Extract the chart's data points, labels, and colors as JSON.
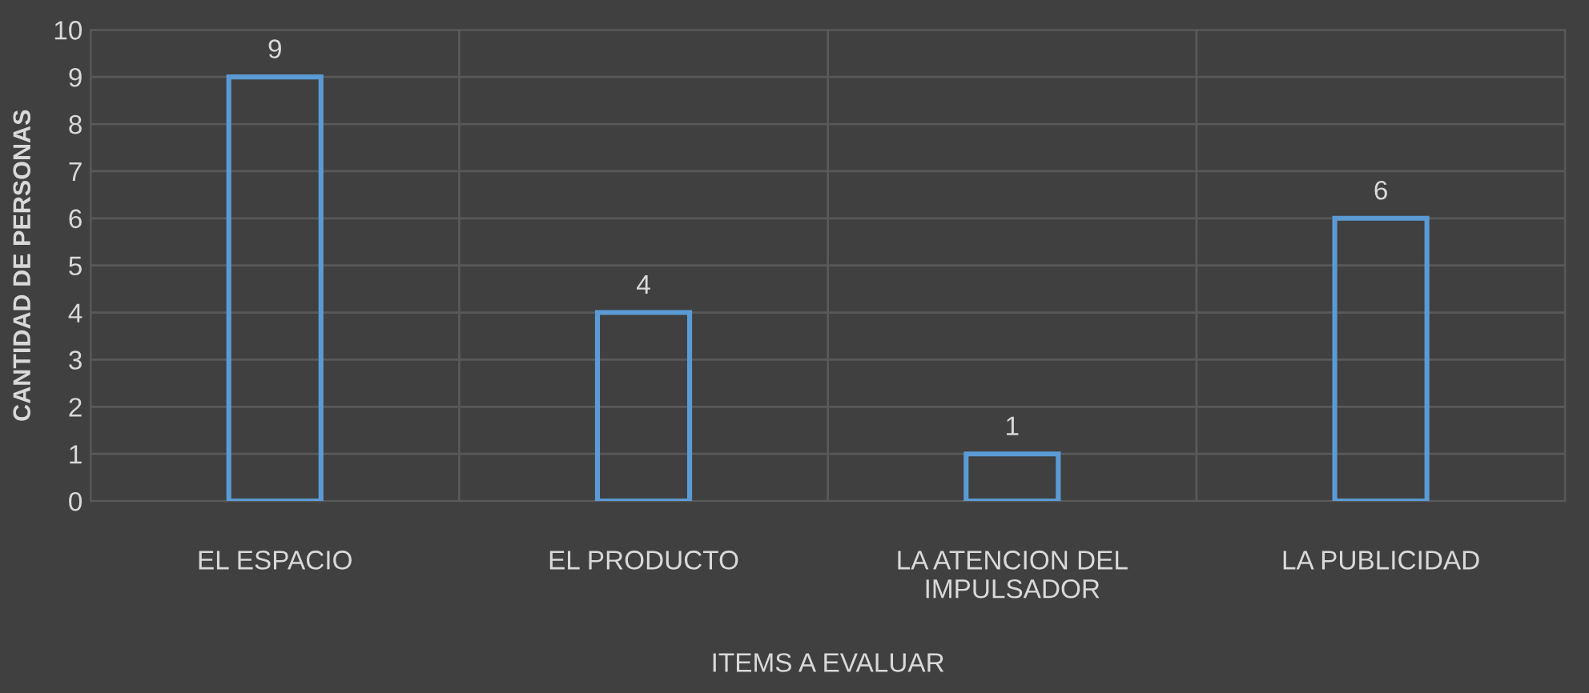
{
  "chart_data": {
    "type": "bar",
    "xlabel": "ITEMS A EVALUAR",
    "ylabel": "CANTIDAD DE PERSONAS",
    "categories": [
      "EL ESPACIO",
      "EL PRODUCTO",
      "LA ATENCION DEL\nIMPULSADOR",
      "LA PUBLICIDAD"
    ],
    "values": [
      9,
      4,
      1,
      6
    ],
    "color": "#5b9bd5",
    "ylim": [
      0,
      10
    ],
    "yticks": [
      0,
      1,
      2,
      3,
      4,
      5,
      6,
      7,
      8,
      9,
      10
    ],
    "grid": true,
    "data_labels": true
  }
}
